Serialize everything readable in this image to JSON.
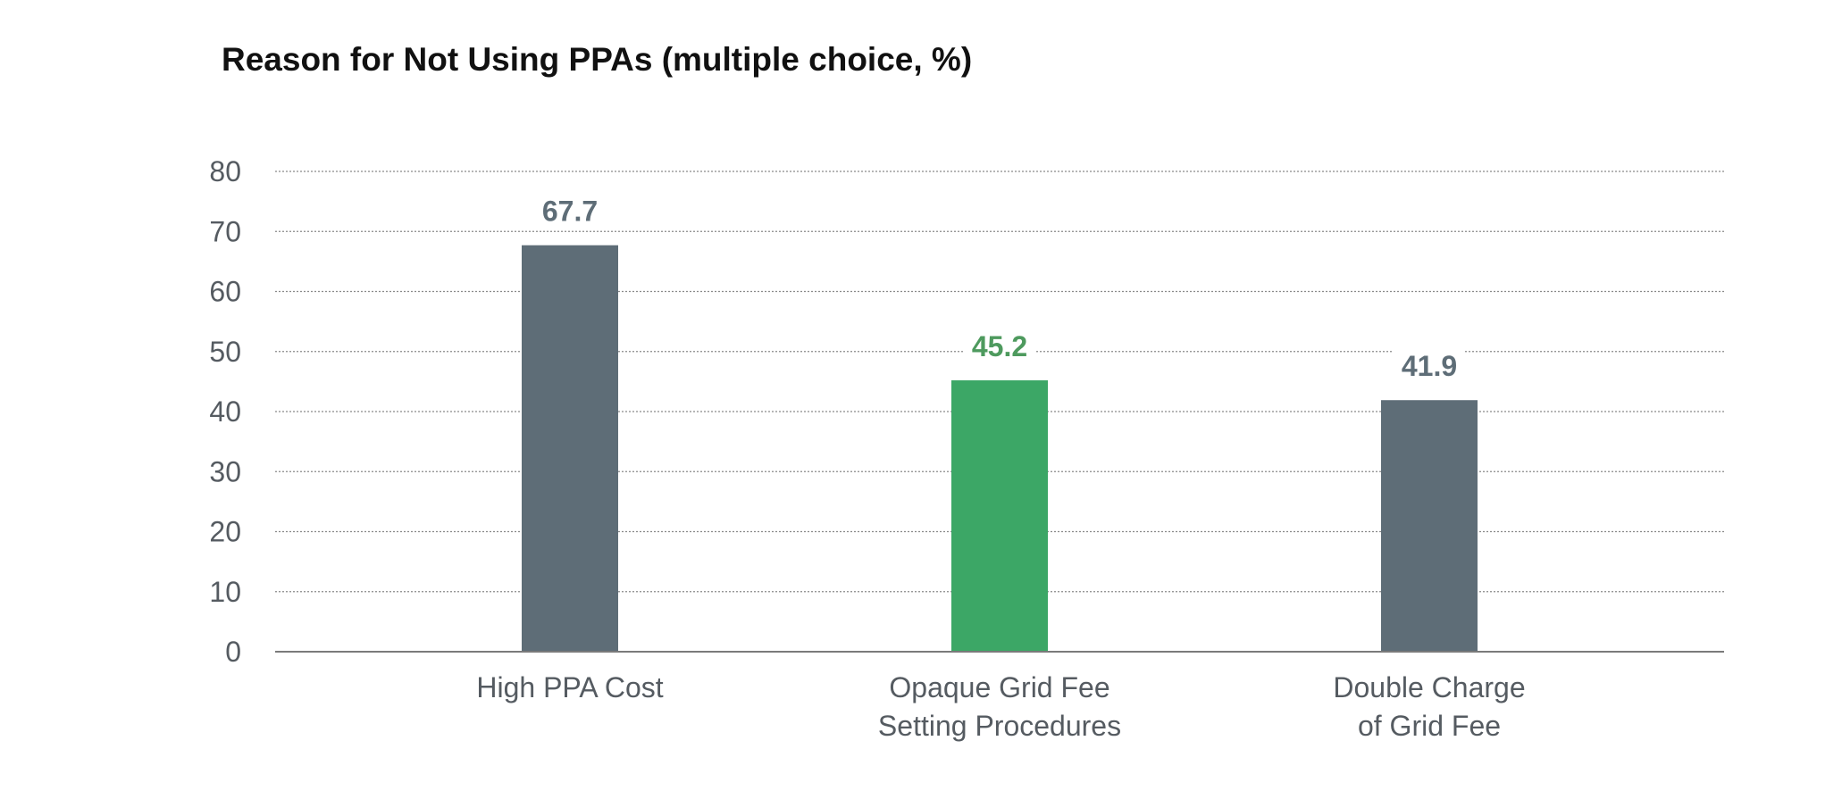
{
  "chart_data": {
    "type": "bar",
    "title": "Reason for Not Using PPAs (multiple choice, %)",
    "categories": [
      [
        "High PPA Cost"
      ],
      [
        "Opaque Grid Fee",
        "Setting Procedures"
      ],
      [
        "Double Charge",
        "of  Grid Fee"
      ]
    ],
    "values": [
      67.7,
      45.2,
      41.9
    ],
    "value_labels": [
      "67.7",
      "45.2",
      "41.9"
    ],
    "bar_colors": [
      "#5e6d77",
      "#3ca766",
      "#5e6d77"
    ],
    "label_colors": [
      "#5e6d77",
      "#4e9a5e",
      "#5e6d77"
    ],
    "ylim": [
      0,
      80
    ],
    "yticks": [
      0,
      10,
      20,
      30,
      40,
      50,
      60,
      70,
      80
    ],
    "grid": true,
    "xlabel": "",
    "ylabel": ""
  }
}
